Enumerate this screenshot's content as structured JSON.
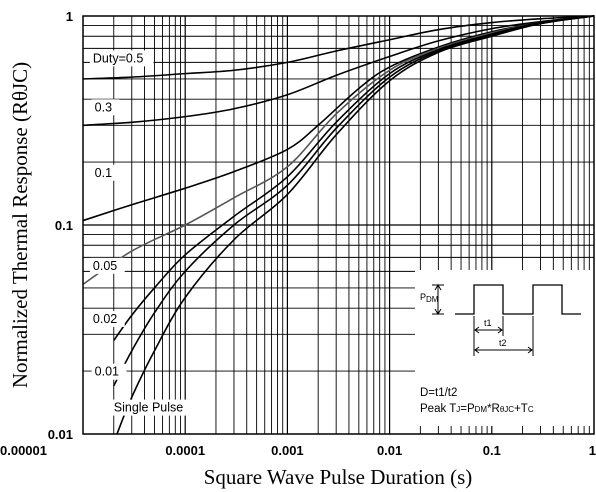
{
  "chart_data": {
    "type": "line",
    "xscale": "log",
    "yscale": "log",
    "xlabel": "Square Wave Pulse Duration (s)",
    "ylabel": "Normalized Thermal Response (RθJC)",
    "xlim": [
      1e-05,
      1
    ],
    "ylim": [
      0.01,
      1
    ],
    "x_ticks": [
      {
        "value": 1e-05,
        "label": "0.00001"
      },
      {
        "value": 0.0001,
        "label": "0.0001"
      },
      {
        "value": 0.001,
        "label": "0.001"
      },
      {
        "value": 0.01,
        "label": "0.01"
      },
      {
        "value": 0.1,
        "label": "0.1"
      },
      {
        "value": 1,
        "label": "1"
      }
    ],
    "y_ticks": [
      {
        "value": 0.01,
        "label": "0.01"
      },
      {
        "value": 0.1,
        "label": "0.1"
      },
      {
        "value": 1,
        "label": "1"
      }
    ],
    "grid": true,
    "series": [
      {
        "name": "Duty=0.5",
        "color": "#000000",
        "x": [
          1e-05,
          3e-05,
          0.0001,
          0.0003,
          0.001,
          0.003,
          0.01,
          0.03,
          0.1,
          0.3,
          1
        ],
        "y": [
          0.5,
          0.51,
          0.53,
          0.55,
          0.6,
          0.68,
          0.77,
          0.86,
          0.93,
          0.97,
          1.0
        ]
      },
      {
        "name": "0.3",
        "color": "#000000",
        "x": [
          1e-05,
          3e-05,
          0.0001,
          0.0003,
          0.001,
          0.003,
          0.01,
          0.03,
          0.1,
          0.3,
          1
        ],
        "y": [
          0.3,
          0.31,
          0.33,
          0.36,
          0.42,
          0.52,
          0.64,
          0.76,
          0.87,
          0.94,
          1.0
        ]
      },
      {
        "name": "0.1",
        "color": "#000000",
        "x": [
          1e-05,
          3e-05,
          0.0001,
          0.0003,
          0.001,
          0.002,
          0.005,
          0.01,
          0.03,
          0.1,
          0.3,
          1
        ],
        "y": [
          0.105,
          0.125,
          0.15,
          0.18,
          0.23,
          0.3,
          0.45,
          0.57,
          0.71,
          0.84,
          0.93,
          1.0
        ]
      },
      {
        "name": "0.05",
        "color": "#555555",
        "x": [
          1e-05,
          3e-05,
          0.0001,
          0.0003,
          0.001,
          0.003,
          0.01,
          0.03,
          0.1,
          0.3,
          1
        ],
        "y": [
          0.052,
          0.075,
          0.1,
          0.135,
          0.19,
          0.34,
          0.55,
          0.7,
          0.83,
          0.93,
          1.0
        ]
      },
      {
        "name": "0.02",
        "color": "#000000",
        "x": [
          2e-05,
          3e-05,
          5e-05,
          0.0001,
          0.0003,
          0.001,
          0.003,
          0.01,
          0.03,
          0.1,
          0.3,
          1
        ],
        "y": [
          0.028,
          0.037,
          0.05,
          0.072,
          0.11,
          0.17,
          0.31,
          0.53,
          0.69,
          0.82,
          0.93,
          1.0
        ]
      },
      {
        "name": "0.01",
        "color": "#000000",
        "x": [
          2e-05,
          3e-05,
          5e-05,
          0.0001,
          0.0003,
          0.001,
          0.003,
          0.01,
          0.03,
          0.1,
          0.3,
          1
        ],
        "y": [
          0.017,
          0.025,
          0.038,
          0.06,
          0.1,
          0.155,
          0.29,
          0.51,
          0.68,
          0.81,
          0.92,
          1.0
        ]
      },
      {
        "name": "Single Pulse",
        "color": "#000000",
        "x": [
          2.15e-05,
          3e-05,
          5e-05,
          0.0001,
          0.0003,
          0.001,
          0.003,
          0.01,
          0.03,
          0.1,
          0.3,
          1
        ],
        "y": [
          0.01,
          0.015,
          0.025,
          0.045,
          0.085,
          0.14,
          0.27,
          0.49,
          0.67,
          0.8,
          0.92,
          1.0
        ]
      }
    ],
    "series_label_positions": [
      {
        "name": "Duty=0.5",
        "x": 1.25e-05,
        "y": 0.6
      },
      {
        "name": "0.3",
        "x": 1.3e-05,
        "y": 0.35
      },
      {
        "name": "0.1",
        "x": 1.3e-05,
        "y": 0.17
      },
      {
        "name": "0.05",
        "x": 1.25e-05,
        "y": 0.061
      },
      {
        "name": "0.02",
        "x": 1.25e-05,
        "y": 0.034
      },
      {
        "name": "0.01",
        "x": 1.3e-05,
        "y": 0.019
      },
      {
        "name": "Single Pulse",
        "x": 2e-05,
        "y": 0.0128
      }
    ],
    "inset": {
      "pdm_label": "P",
      "pdm_sub": "DM",
      "t1_label": "t1",
      "t2_label": "t2",
      "duty_formula": "D=t1/t2",
      "peak_prefix": "Peak T",
      "peak_j": "J",
      "peak_eq": "=P",
      "peak_dm": "DM",
      "peak_mul": "*R",
      "peak_theta": "θJC",
      "peak_plus": "+T",
      "peak_c": "C"
    }
  }
}
